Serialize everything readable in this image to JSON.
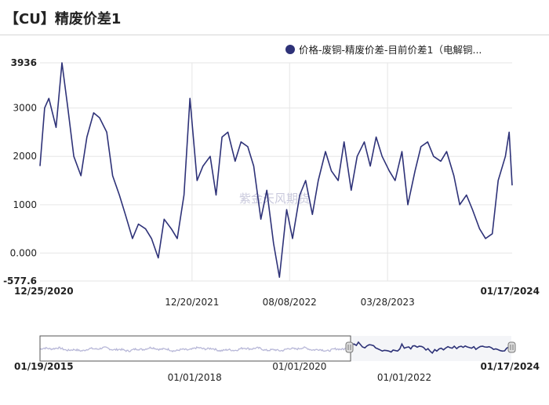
{
  "title": "【CU】精废价差1",
  "colors": {
    "series": "#2e3278",
    "grid": "#e6e6e6",
    "navigator_past": "#b8b8d8",
    "watermark": "#c9c9dc"
  },
  "watermark": "紫金天风期货",
  "chart_data": {
    "type": "line",
    "title": "",
    "xlabel": "",
    "ylabel": "",
    "series": [
      {
        "name": "价格-废铜-精废价差-目前价差1（电解铜...",
        "x": [
          "2020-12-25",
          "2021-01-05",
          "2021-01-15",
          "2021-02-01",
          "2021-02-15",
          "2021-03-01",
          "2021-03-15",
          "2021-04-01",
          "2021-04-15",
          "2021-05-01",
          "2021-05-15",
          "2021-06-01",
          "2021-06-15",
          "2021-07-01",
          "2021-07-15",
          "2021-08-01",
          "2021-08-15",
          "2021-09-01",
          "2021-09-15",
          "2021-10-01",
          "2021-10-15",
          "2021-11-01",
          "2021-11-15",
          "2021-12-01",
          "2021-12-15",
          "2022-01-01",
          "2022-01-15",
          "2022-02-01",
          "2022-02-15",
          "2022-03-01",
          "2022-03-15",
          "2022-04-01",
          "2022-04-15",
          "2022-05-01",
          "2022-05-15",
          "2022-06-01",
          "2022-06-15",
          "2022-07-01",
          "2022-07-15",
          "2022-08-01",
          "2022-08-15",
          "2022-09-01",
          "2022-09-15",
          "2022-10-01",
          "2022-10-15",
          "2022-11-01",
          "2022-11-15",
          "2022-12-01",
          "2022-12-15",
          "2023-01-01",
          "2023-01-15",
          "2023-02-01",
          "2023-02-15",
          "2023-03-01",
          "2023-03-15",
          "2023-04-01",
          "2023-04-15",
          "2023-05-01",
          "2023-05-15",
          "2023-06-01",
          "2023-06-15",
          "2023-07-01",
          "2023-07-15",
          "2023-08-01",
          "2023-08-15",
          "2023-09-01",
          "2023-09-15",
          "2023-10-01",
          "2023-10-15",
          "2023-11-01",
          "2023-11-15",
          "2023-12-01",
          "2023-12-15",
          "2024-01-01",
          "2024-01-10",
          "2024-01-17"
        ],
        "values": [
          1800,
          3000,
          3200,
          2600,
          3936,
          3000,
          2000,
          1600,
          2400,
          2900,
          2800,
          2500,
          1600,
          1200,
          800,
          300,
          600,
          500,
          300,
          -100,
          700,
          500,
          300,
          1200,
          3200,
          1500,
          1800,
          2000,
          1200,
          2400,
          2500,
          1900,
          2300,
          2200,
          1800,
          700,
          1300,
          200,
          -500,
          900,
          300,
          1200,
          1500,
          800,
          1500,
          2100,
          1700,
          1500,
          2300,
          1300,
          2000,
          2300,
          1800,
          2400,
          2000,
          1700,
          1500,
          2100,
          1000,
          1700,
          2200,
          2300,
          2000,
          1900,
          2100,
          1600,
          1000,
          1200,
          900,
          500,
          300,
          400,
          1500,
          2000,
          2500,
          1400
        ]
      }
    ],
    "y_ticks": [
      3936,
      3000,
      2000,
      1000,
      0,
      -577.6
    ],
    "y_tick_labels": [
      "3936",
      "3000",
      "2000",
      "1000",
      "0.000",
      "-577.6"
    ],
    "ylim": [
      -577.6,
      3936
    ],
    "x_range": [
      "2020-12-25",
      "2024-01-17"
    ],
    "x_ticks": [
      "2021-12-20",
      "2022-08-08",
      "2023-03-28"
    ],
    "x_tick_labels": [
      "12/20/2021",
      "08/08/2022",
      "03/28/2023"
    ],
    "x_start_label": "12/25/2020",
    "x_end_label": "01/17/2024",
    "grid": true,
    "legend": "top-right",
    "navigator": {
      "start_label": "01/19/2015",
      "end_label": "01/17/2024",
      "tick_labels": [
        "01/01/2018",
        "01/01/2020",
        "01/01/2022"
      ],
      "selection_start": "2020-12-25",
      "selection_end": "2024-01-17"
    }
  }
}
